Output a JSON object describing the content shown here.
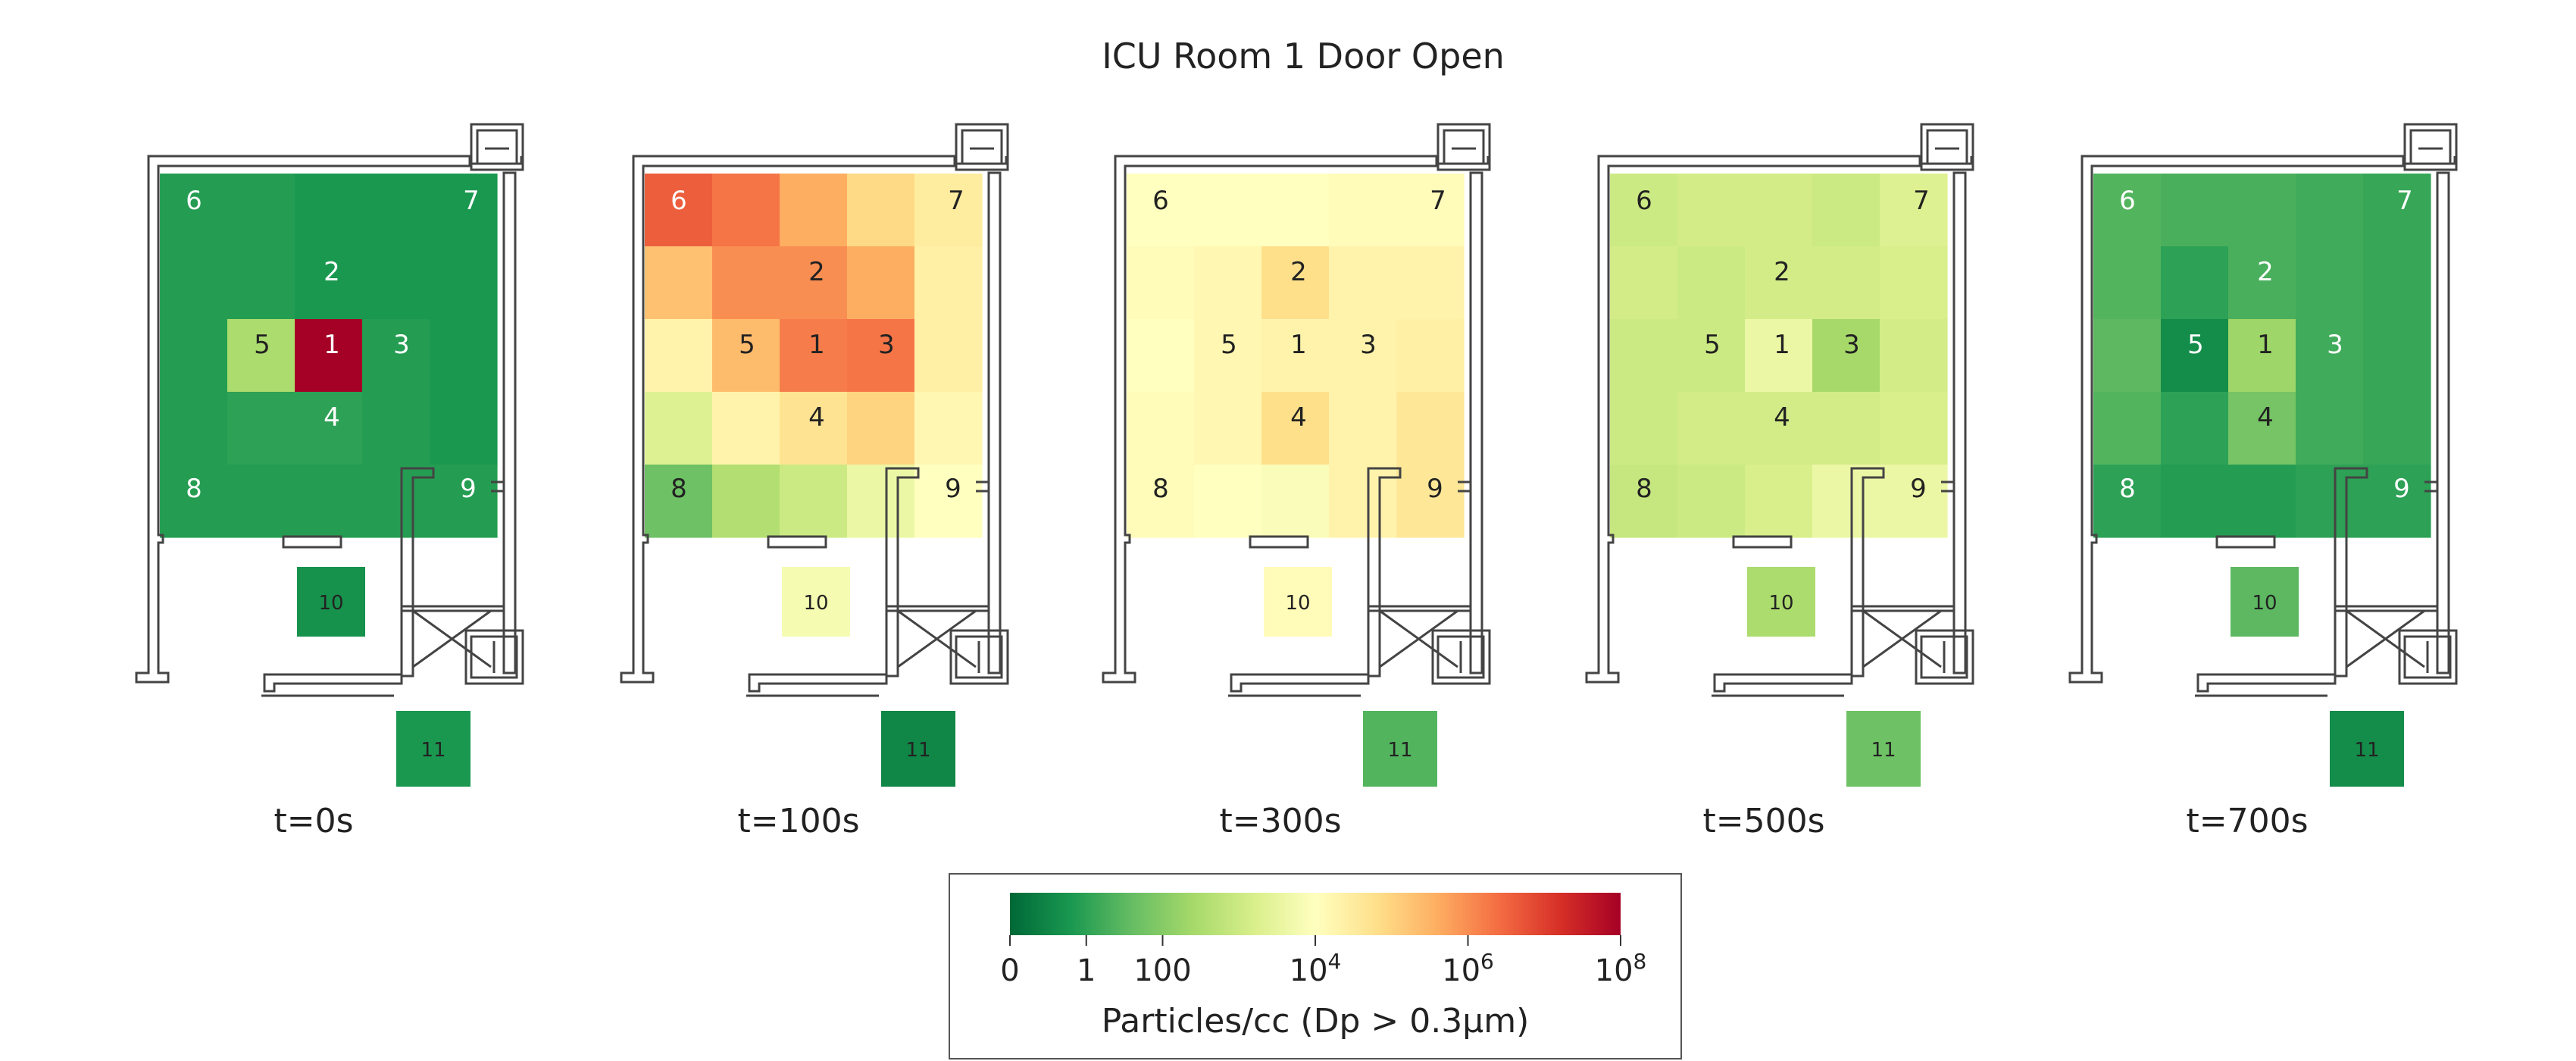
{
  "chart_data": {
    "type": "heatmap",
    "title": "ICU Room 1 Door Open",
    "panels": [
      {
        "time_label": "t=0s",
        "labels": {
          "1": "1",
          "2": "2",
          "3": "3",
          "4": "4",
          "5": "5",
          "6": "6",
          "7": "7",
          "8": "8",
          "9": "9",
          "10": "10",
          "11": "11"
        },
        "grid": [
          [
            0.9,
            0.9,
            0.8,
            0.8,
            0.8
          ],
          [
            0.9,
            0.9,
            0.8,
            0.8,
            0.8
          ],
          [
            0.9,
            2.5,
            8.0,
            0.9,
            0.8
          ],
          [
            0.9,
            1.0,
            1.0,
            0.9,
            0.8
          ],
          [
            0.9,
            0.9,
            0.9,
            0.9,
            0.9
          ]
        ],
        "room10": 0.7,
        "room11": 0.8
      },
      {
        "time_label": "t=100s",
        "labels": {
          "1": "1",
          "2": "2",
          "3": "3",
          "4": "4",
          "5": "5",
          "6": "6",
          "7": "7",
          "8": "8",
          "9": "9",
          "10": "10",
          "11": "11"
        },
        "grid": [
          [
            6.6,
            6.3,
            5.6,
            4.9,
            4.5
          ],
          [
            5.3,
            6.0,
            6.0,
            5.6,
            4.4
          ],
          [
            4.3,
            5.4,
            6.2,
            6.3,
            4.4
          ],
          [
            3.3,
            4.3,
            4.7,
            5.0,
            4.2
          ],
          [
            1.7,
            2.6,
            3.0,
            3.6,
            4.0
          ]
        ],
        "room10": 3.8,
        "room11": 0.5
      },
      {
        "time_label": "t=300s",
        "labels": {
          "1": "1",
          "2": "2",
          "3": "3",
          "4": "4",
          "5": "5",
          "6": "6",
          "7": "7",
          "8": "8",
          "9": "9",
          "10": "10",
          "11": "11"
        },
        "grid": [
          [
            4.0,
            4.0,
            4.0,
            4.1,
            4.1
          ],
          [
            4.1,
            4.2,
            4.8,
            4.3,
            4.3
          ],
          [
            4.0,
            4.2,
            4.3,
            4.3,
            4.4
          ],
          [
            4.1,
            4.2,
            4.8,
            4.3,
            4.6
          ],
          [
            4.1,
            4.0,
            3.9,
            4.3,
            4.6
          ]
        ],
        "room10": 4.1,
        "room11": 1.4
      },
      {
        "time_label": "t=500s",
        "labels": {
          "1": "1",
          "2": "2",
          "3": "3",
          "4": "4",
          "5": "5",
          "6": "6",
          "7": "7",
          "8": "8",
          "9": "9",
          "10": "10",
          "11": "11"
        },
        "grid": [
          [
            3.0,
            3.1,
            3.1,
            3.0,
            3.3
          ],
          [
            3.1,
            3.0,
            3.1,
            3.1,
            3.2
          ],
          [
            3.0,
            3.0,
            3.6,
            2.4,
            3.1
          ],
          [
            3.0,
            3.1,
            3.1,
            3.1,
            3.2
          ],
          [
            2.9,
            3.0,
            3.2,
            3.6,
            3.6
          ]
        ],
        "room10": 2.5,
        "room11": 1.7
      },
      {
        "time_label": "t=700s",
        "labels": {
          "1": "1",
          "2": "2",
          "3": "3",
          "4": "4",
          "5": "5",
          "6": "6",
          "7": "7",
          "8": "8",
          "9": "9",
          "10": "10",
          "11": "11"
        },
        "grid": [
          [
            1.4,
            1.3,
            1.3,
            1.2,
            1.1
          ],
          [
            1.4,
            1.0,
            1.3,
            1.2,
            1.1
          ],
          [
            1.5,
            0.6,
            2.3,
            1.2,
            1.1
          ],
          [
            1.4,
            1.0,
            1.8,
            1.2,
            1.1
          ],
          [
            1.0,
            0.9,
            0.9,
            1.0,
            1.0
          ]
        ],
        "room10": 1.5,
        "room11": 0.6
      }
    ],
    "colorbar": {
      "label": "Particles/cc (Dp > 0.3μm)",
      "scale": "log10",
      "range": [
        0,
        8
      ],
      "ticks": [
        {
          "value": 0,
          "base": "0",
          "sup": ""
        },
        {
          "value": 1,
          "base": "1",
          "sup": ""
        },
        {
          "value": 2,
          "base": "100",
          "sup": ""
        },
        {
          "value": 4,
          "base": "10",
          "sup": "4"
        },
        {
          "value": 6,
          "base": "10",
          "sup": "6"
        },
        {
          "value": 8,
          "base": "10",
          "sup": "8"
        }
      ],
      "colors": [
        "#006837",
        "#1a9850",
        "#66bd63",
        "#a6d96a",
        "#d9ef8b",
        "#ffffbf",
        "#fee08b",
        "#fdae61",
        "#f46d43",
        "#d73027",
        "#a50026"
      ]
    },
    "grid": false
  }
}
